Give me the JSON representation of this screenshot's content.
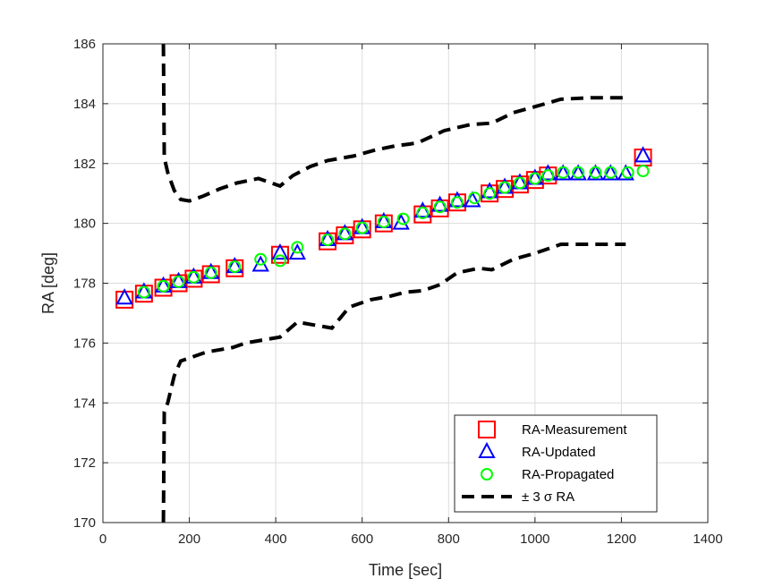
{
  "chart_data": {
    "type": "scatter",
    "xlabel": "Time [sec]",
    "ylabel": "RA [deg]",
    "xlim": [
      0,
      1400
    ],
    "ylim": [
      170,
      186
    ],
    "xticks": [
      0,
      200,
      400,
      600,
      800,
      1000,
      1200,
      1400
    ],
    "yticks": [
      170,
      172,
      174,
      176,
      178,
      180,
      182,
      184,
      186
    ],
    "grid": true,
    "legend_position": "bottom-right",
    "series": [
      {
        "name": "RA-Measurement",
        "marker": "square",
        "color": "#ff0000",
        "x": [
          50,
          95,
          140,
          175,
          210,
          250,
          305,
          410,
          520,
          560,
          600,
          650,
          740,
          780,
          820,
          895,
          930,
          965,
          1000,
          1030,
          1250
        ],
        "y": [
          177.45,
          177.65,
          177.85,
          178.0,
          178.15,
          178.3,
          178.5,
          178.95,
          179.4,
          179.6,
          179.8,
          180.0,
          180.3,
          180.5,
          180.7,
          181.0,
          181.15,
          181.3,
          181.45,
          181.6,
          182.2
        ]
      },
      {
        "name": "RA-Updated",
        "marker": "triangle",
        "color": "#0000ff",
        "x": [
          50,
          95,
          140,
          175,
          210,
          250,
          305,
          365,
          410,
          450,
          520,
          560,
          600,
          650,
          690,
          740,
          780,
          820,
          855,
          895,
          930,
          965,
          1000,
          1030,
          1065,
          1100,
          1140,
          1175,
          1210,
          1250
        ],
        "y": [
          177.5,
          177.7,
          177.9,
          178.05,
          178.2,
          178.35,
          178.55,
          178.6,
          179.0,
          179.0,
          179.45,
          179.65,
          179.85,
          180.05,
          180.0,
          180.4,
          180.6,
          180.75,
          180.75,
          181.05,
          181.2,
          181.35,
          181.5,
          181.65,
          181.65,
          181.65,
          181.65,
          181.65,
          181.65,
          182.25
        ]
      },
      {
        "name": "RA-Propagated",
        "marker": "circle",
        "color": "#00ff00",
        "x": [
          95,
          140,
          175,
          210,
          250,
          305,
          365,
          410,
          450,
          520,
          560,
          600,
          650,
          695,
          740,
          780,
          820,
          860,
          895,
          930,
          965,
          1000,
          1030,
          1065,
          1100,
          1140,
          1175,
          1215,
          1250
        ],
        "y": [
          177.7,
          177.9,
          178.05,
          178.2,
          178.35,
          178.55,
          178.8,
          178.75,
          179.2,
          179.45,
          179.65,
          179.85,
          180.05,
          180.15,
          180.35,
          180.55,
          180.7,
          180.85,
          181.0,
          181.2,
          181.35,
          181.5,
          181.6,
          181.7,
          181.7,
          181.7,
          181.7,
          181.7,
          181.75
        ]
      },
      {
        "name": "± 3 σ RA",
        "line": "dashed",
        "color": "#000000",
        "upper": {
          "x": [
            140,
            142,
            150,
            165,
            180,
            200,
            230,
            270,
            310,
            360,
            390,
            410,
            440,
            480,
            520,
            580,
            630,
            680,
            710,
            730,
            790,
            850,
            900,
            950,
            1000,
            1060,
            1130,
            1170,
            1210
          ],
          "y": [
            186.0,
            182.2,
            181.7,
            181.1,
            180.8,
            180.75,
            180.9,
            181.15,
            181.35,
            181.5,
            181.35,
            181.25,
            181.6,
            181.9,
            182.1,
            182.25,
            182.45,
            182.6,
            182.65,
            182.7,
            183.1,
            183.3,
            183.35,
            183.7,
            183.9,
            184.15,
            184.2,
            184.2,
            184.2
          ]
        },
        "lower": {
          "x": [
            140,
            142,
            150,
            165,
            180,
            200,
            240,
            300,
            330,
            370,
            410,
            450,
            490,
            530,
            570,
            620,
            660,
            700,
            740,
            780,
            820,
            870,
            900,
            950,
            1000,
            1060,
            1130,
            1170,
            1210
          ],
          "y": [
            170.0,
            173.7,
            174.0,
            174.9,
            175.4,
            175.5,
            175.7,
            175.85,
            176.0,
            176.1,
            176.2,
            176.7,
            176.6,
            176.5,
            177.2,
            177.45,
            177.55,
            177.7,
            177.75,
            177.95,
            178.35,
            178.5,
            178.45,
            178.8,
            179.0,
            179.3,
            179.3,
            179.3,
            179.3
          ]
        }
      }
    ]
  }
}
